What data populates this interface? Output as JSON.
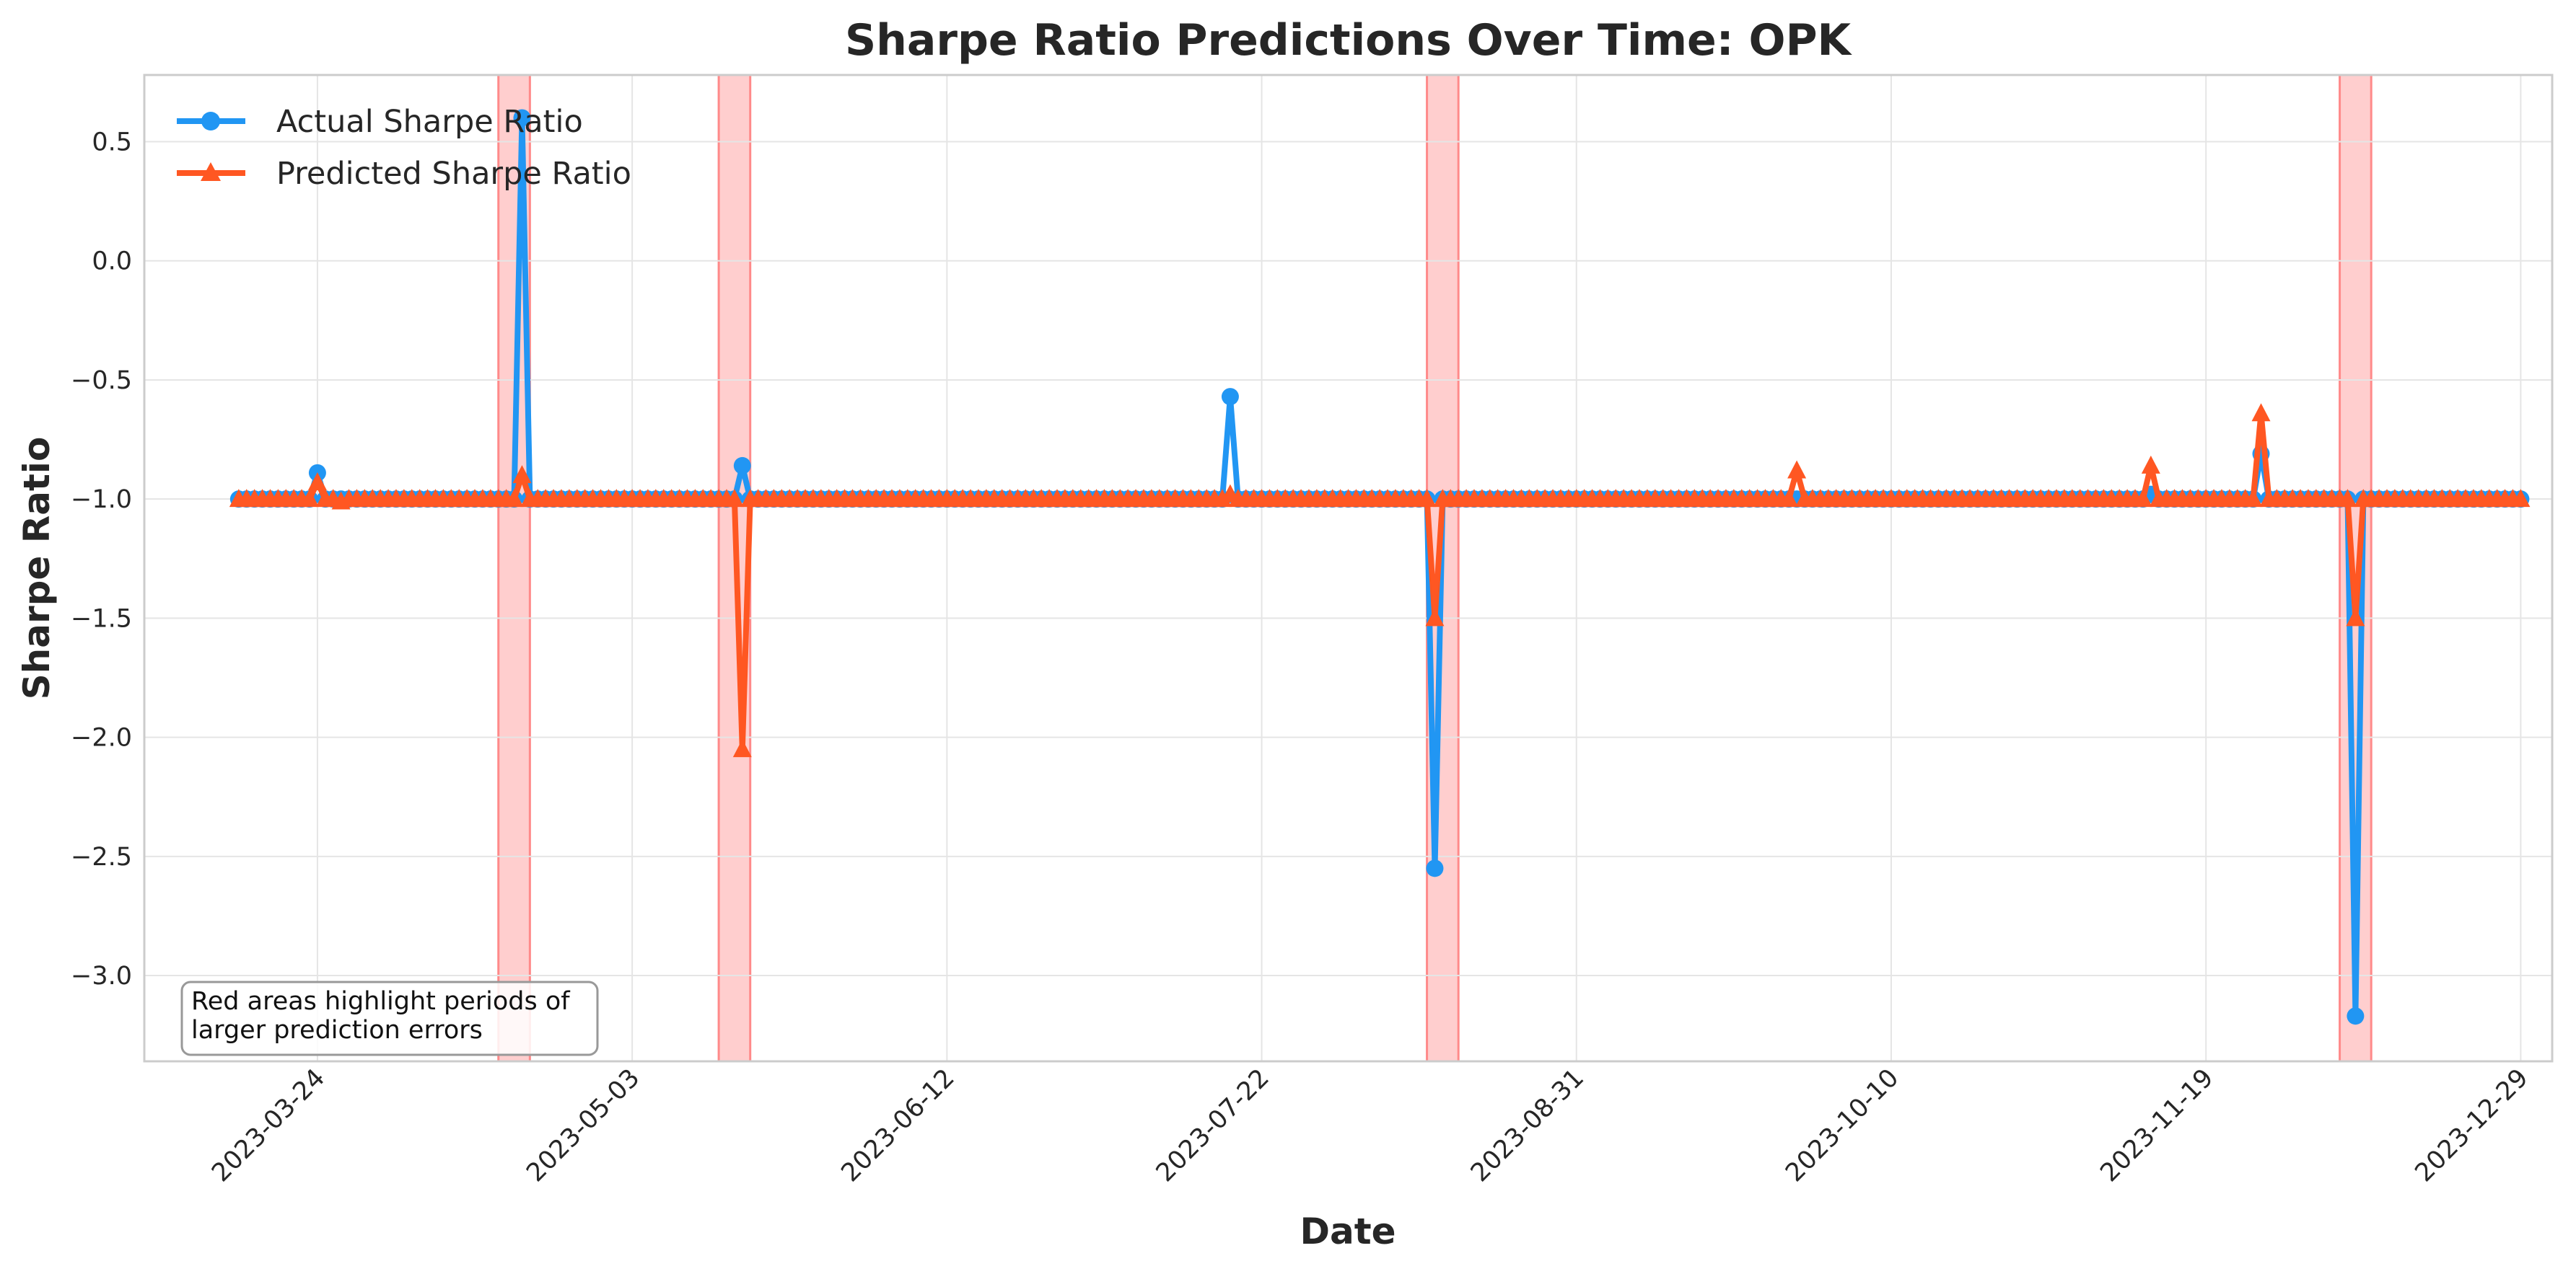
{
  "chart_data": {
    "type": "line",
    "title": "Sharpe Ratio Predictions Over Time: OPK",
    "xlabel": "Date",
    "ylabel": "Sharpe Ratio",
    "xlim": [
      "2023-03-02",
      "2024-01-02"
    ],
    "ylim": [
      -3.36,
      0.78
    ],
    "x_ticks": [
      "2023-03-24",
      "2023-05-03",
      "2023-06-12",
      "2023-07-22",
      "2023-08-31",
      "2023-10-10",
      "2023-11-19",
      "2023-12-29"
    ],
    "y_ticks": [
      0.5,
      0.0,
      -0.5,
      -1.0,
      -1.5,
      -2.0,
      -2.5,
      -3.0
    ],
    "y_tick_labels": [
      "0.5",
      "0.0",
      "−0.5",
      "−1.0",
      "−1.5",
      "−2.0",
      "−2.5",
      "−3.0"
    ],
    "grid": true,
    "legend_position": "top-left",
    "series": [
      {
        "name": "Actual Sharpe Ratio",
        "color": "#2196f3",
        "marker": "circle",
        "points": [
          [
            "2023-03-14",
            -1.0
          ],
          [
            "2023-03-24",
            -0.89
          ],
          [
            "2023-04-19",
            0.6
          ],
          [
            "2023-05-17",
            -0.86
          ],
          [
            "2023-07-18",
            -0.57
          ],
          [
            "2023-08-13",
            -2.55
          ],
          [
            "2023-11-12",
            -0.98
          ],
          [
            "2023-11-26",
            -0.81
          ],
          [
            "2023-12-08",
            -3.17
          ],
          [
            "2023-12-29",
            -1.0
          ]
        ]
      },
      {
        "name": "Predicted Sharpe Ratio",
        "color": "#ff5722",
        "marker": "triangle",
        "points": [
          [
            "2023-03-14",
            -1.0
          ],
          [
            "2023-03-24",
            -0.93
          ],
          [
            "2023-03-27",
            -1.01
          ],
          [
            "2023-04-19",
            -0.9
          ],
          [
            "2023-04-20",
            -1.0
          ],
          [
            "2023-05-17",
            -2.05
          ],
          [
            "2023-05-18",
            -1.0
          ],
          [
            "2023-07-18",
            -0.98
          ],
          [
            "2023-08-13",
            -1.5
          ],
          [
            "2023-08-14",
            -1.0
          ],
          [
            "2023-09-28",
            -0.88
          ],
          [
            "2023-09-29",
            -1.0
          ],
          [
            "2023-11-12",
            -0.86
          ],
          [
            "2023-11-15",
            -1.0
          ],
          [
            "2023-11-26",
            -0.64
          ],
          [
            "2023-11-29",
            -1.0
          ],
          [
            "2023-12-08",
            -1.5
          ],
          [
            "2023-12-09",
            -1.0
          ],
          [
            "2023-12-29",
            -1.0
          ]
        ]
      }
    ],
    "highlight_periods": [
      [
        "2023-04-16",
        "2023-04-20"
      ],
      [
        "2023-05-14",
        "2023-05-18"
      ],
      [
        "2023-08-12",
        "2023-08-16"
      ],
      [
        "2023-12-06",
        "2023-12-10"
      ]
    ],
    "highlight_color": "#ff9e9e",
    "annotation": "Red areas highlight periods of larger prediction errors"
  }
}
